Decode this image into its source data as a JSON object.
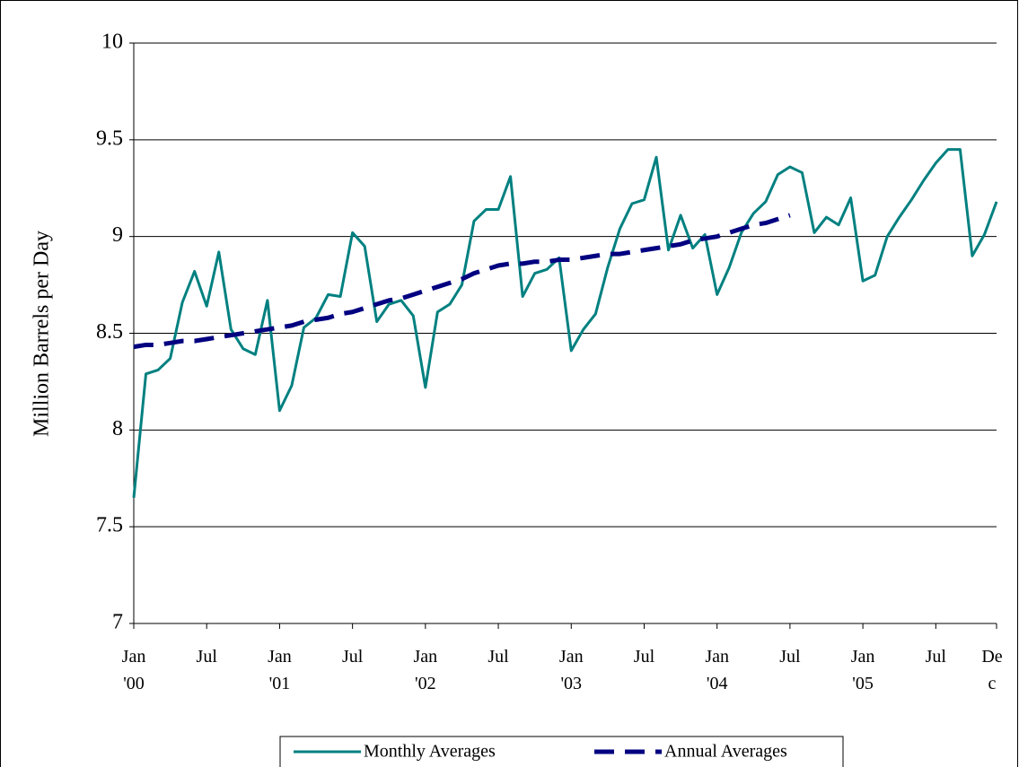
{
  "chart_data": {
    "type": "line",
    "y_label": "Million Barrels per Day",
    "categories": [
      "Jan\n'00",
      null,
      null,
      null,
      null,
      null,
      "Jul",
      null,
      null,
      null,
      null,
      null,
      "Jan\n'01",
      null,
      null,
      null,
      null,
      null,
      "Jul",
      null,
      null,
      null,
      null,
      null,
      "Jan\n'02",
      null,
      null,
      null,
      null,
      null,
      "Jul",
      null,
      null,
      null,
      null,
      null,
      "Jan\n'03",
      null,
      null,
      null,
      null,
      null,
      "Jul",
      null,
      null,
      null,
      null,
      null,
      "Jan\n'04",
      null,
      null,
      null,
      null,
      null,
      "Jul",
      null,
      null,
      null,
      null,
      null,
      "Jan\n'05",
      null,
      null,
      null,
      null,
      null,
      "Jul",
      null,
      null,
      null,
      null,
      "De\nc"
    ],
    "series": [
      {
        "name": "Monthly Averages",
        "color": "#008080",
        "dash": false,
        "values": [
          7.65,
          8.29,
          8.31,
          8.37,
          8.66,
          8.82,
          8.64,
          8.92,
          8.52,
          8.42,
          8.39,
          8.67,
          8.1,
          8.23,
          8.53,
          8.58,
          8.7,
          8.69,
          9.02,
          8.95,
          8.56,
          8.65,
          8.67,
          8.59,
          8.22,
          8.61,
          8.65,
          8.75,
          9.08,
          9.14,
          9.14,
          9.31,
          8.69,
          8.81,
          8.83,
          8.89,
          8.41,
          8.52,
          8.6,
          8.84,
          9.04,
          9.17,
          9.19,
          9.41,
          8.93,
          9.11,
          8.94,
          9.01,
          8.7,
          8.84,
          9.02,
          9.12,
          9.18,
          9.32,
          9.36,
          9.33,
          9.02,
          9.1,
          9.06,
          9.2,
          8.77,
          8.8,
          9.0,
          9.1,
          9.19,
          9.29,
          9.38,
          9.45,
          9.45,
          8.9,
          9.01,
          9.18
        ]
      },
      {
        "name": "Annual Averages",
        "color": "#000080",
        "dash": true,
        "values": [
          8.43,
          8.44,
          8.44,
          8.45,
          8.46,
          8.46,
          8.47,
          8.48,
          8.49,
          8.5,
          8.51,
          8.52,
          8.53,
          8.54,
          8.56,
          8.57,
          8.58,
          8.6,
          8.61,
          8.63,
          8.65,
          8.67,
          8.68,
          8.7,
          8.72,
          8.74,
          8.76,
          8.78,
          8.81,
          8.83,
          8.85,
          8.86,
          8.86,
          8.87,
          8.87,
          8.88,
          8.88,
          8.89,
          8.9,
          8.91,
          8.91,
          8.92,
          8.93,
          8.94,
          8.95,
          8.96,
          8.98,
          8.99,
          9.0,
          9.02,
          9.04,
          9.06,
          9.07,
          9.09,
          9.11,
          null,
          null,
          null,
          null,
          null,
          null,
          null,
          null,
          null,
          null,
          null,
          null,
          null,
          null,
          null,
          null,
          null
        ]
      }
    ],
    "ylim": [
      7,
      10
    ],
    "yticks": [
      7,
      7.5,
      8,
      8.5,
      9,
      9.5,
      10
    ],
    "grid": true,
    "legend": "bottom"
  }
}
